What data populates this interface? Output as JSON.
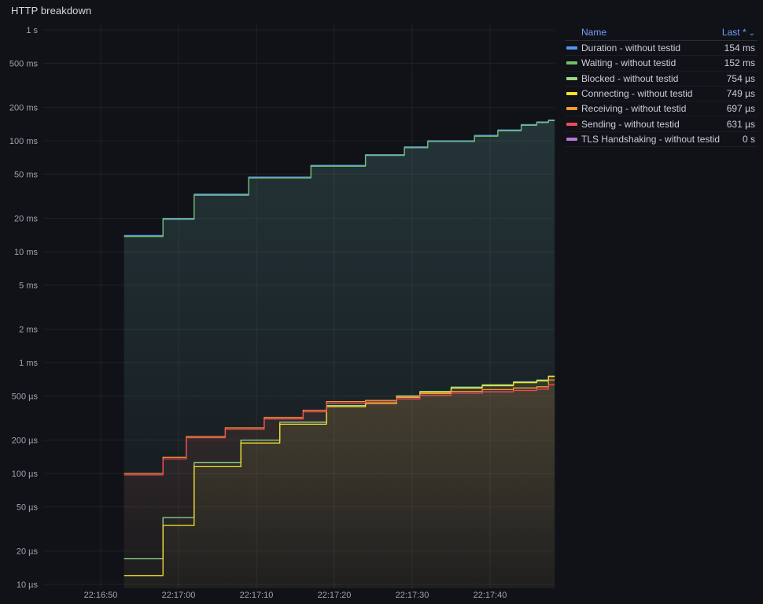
{
  "panel": {
    "title": "HTTP breakdown"
  },
  "colors": {
    "background": "#111217",
    "grid": "rgba(204,204,220,0.08)",
    "axis_text": "#9fa3ab",
    "legend_header": "#6e9fff",
    "legend_text": "#ccccdc"
  },
  "legend": {
    "name_header": "Name",
    "last_header": "Last *",
    "sort_caret": "⌄"
  },
  "chart_data": {
    "type": "line",
    "title": "HTTP breakdown",
    "step": "after",
    "grid": true,
    "legend_position": "right-table",
    "x_axis": {
      "unit": "time",
      "start_seconds": 42.6,
      "end_seconds": 108.3,
      "ticks": [
        {
          "label": "22:16:50",
          "t": 50
        },
        {
          "label": "22:17:00",
          "t": 60
        },
        {
          "label": "22:17:10",
          "t": 70
        },
        {
          "label": "22:17:20",
          "t": 80
        },
        {
          "label": "22:17:30",
          "t": 90
        },
        {
          "label": "22:17:40",
          "t": 100
        }
      ]
    },
    "y_axis": {
      "scale": "log10",
      "unit": "µs",
      "min": 10,
      "max": 1000000,
      "ticks": [
        {
          "label": "1 s",
          "v": 1000000
        },
        {
          "label": "500 ms",
          "v": 500000
        },
        {
          "label": "200 ms",
          "v": 200000
        },
        {
          "label": "100 ms",
          "v": 100000
        },
        {
          "label": "50 ms",
          "v": 50000
        },
        {
          "label": "20 ms",
          "v": 20000
        },
        {
          "label": "10 ms",
          "v": 10000
        },
        {
          "label": "5 ms",
          "v": 5000
        },
        {
          "label": "2 ms",
          "v": 2000
        },
        {
          "label": "1 ms",
          "v": 1000
        },
        {
          "label": "500 µs",
          "v": 500
        },
        {
          "label": "200 µs",
          "v": 200
        },
        {
          "label": "100 µs",
          "v": 100
        },
        {
          "label": "50 µs",
          "v": 50
        },
        {
          "label": "20 µs",
          "v": 20
        },
        {
          "label": "10 µs",
          "v": 10
        }
      ]
    },
    "series": [
      {
        "name": "Duration - without testid",
        "color": "#5794F2",
        "last": "154 ms",
        "points": [
          [
            53,
            14000
          ],
          [
            58,
            20000
          ],
          [
            62,
            33000
          ],
          [
            69,
            47000
          ],
          [
            77,
            60000
          ],
          [
            84,
            75000
          ],
          [
            89,
            88000
          ],
          [
            92,
            100000
          ],
          [
            98,
            112000
          ],
          [
            101,
            125000
          ],
          [
            104,
            140000
          ],
          [
            106,
            148000
          ],
          [
            107.5,
            154000
          ]
        ]
      },
      {
        "name": "Waiting - without testid",
        "color": "#73BF69",
        "last": "152 ms",
        "points": [
          [
            53,
            13700
          ],
          [
            58,
            19600
          ],
          [
            62,
            32300
          ],
          [
            69,
            46200
          ],
          [
            77,
            59000
          ],
          [
            84,
            73800
          ],
          [
            89,
            86500
          ],
          [
            92,
            98500
          ],
          [
            98,
            110000
          ],
          [
            101,
            123000
          ],
          [
            104,
            138000
          ],
          [
            106,
            146000
          ],
          [
            107.5,
            152000
          ]
        ]
      },
      {
        "name": "Blocked - without testid",
        "color": "#96D98D",
        "last": "754 µs",
        "points": [
          [
            53,
            17
          ],
          [
            58,
            40
          ],
          [
            62,
            125
          ],
          [
            68,
            200
          ],
          [
            73,
            290
          ],
          [
            79,
            410
          ],
          [
            84,
            440
          ],
          [
            88,
            500
          ],
          [
            91,
            550
          ],
          [
            95,
            600
          ],
          [
            99,
            630
          ],
          [
            103,
            670
          ],
          [
            106,
            695
          ],
          [
            107.5,
            754
          ]
        ]
      },
      {
        "name": "Connecting - without testid",
        "color": "#FADE2A",
        "last": "749 µs",
        "points": [
          [
            53,
            12
          ],
          [
            58,
            34
          ],
          [
            62,
            115
          ],
          [
            68,
            188
          ],
          [
            73,
            278
          ],
          [
            79,
            400
          ],
          [
            84,
            428
          ],
          [
            88,
            488
          ],
          [
            91,
            538
          ],
          [
            95,
            588
          ],
          [
            99,
            618
          ],
          [
            103,
            658
          ],
          [
            106,
            682
          ],
          [
            107.5,
            749
          ]
        ]
      },
      {
        "name": "Receiving - without testid",
        "color": "#FF9830",
        "last": "697 µs",
        "points": [
          [
            53,
            100
          ],
          [
            58,
            140
          ],
          [
            61,
            215
          ],
          [
            66,
            258
          ],
          [
            71,
            320
          ],
          [
            76,
            372
          ],
          [
            79,
            445
          ],
          [
            84,
            455
          ],
          [
            88,
            485
          ],
          [
            91,
            525
          ],
          [
            95,
            550
          ],
          [
            99,
            570
          ],
          [
            103,
            590
          ],
          [
            106,
            605
          ],
          [
            107.5,
            697
          ]
        ]
      },
      {
        "name": "Sending - without testid",
        "color": "#F2495C",
        "last": "631 µs",
        "points": [
          [
            53,
            97
          ],
          [
            58,
            135
          ],
          [
            61,
            210
          ],
          [
            66,
            250
          ],
          [
            71,
            310
          ],
          [
            76,
            360
          ],
          [
            79,
            430
          ],
          [
            84,
            440
          ],
          [
            88,
            470
          ],
          [
            91,
            505
          ],
          [
            95,
            530
          ],
          [
            99,
            545
          ],
          [
            103,
            560
          ],
          [
            106,
            575
          ],
          [
            107.5,
            631
          ]
        ]
      },
      {
        "name": "TLS Handshaking - without testid",
        "color": "#B877D9",
        "last": "0 s",
        "points": []
      }
    ]
  }
}
